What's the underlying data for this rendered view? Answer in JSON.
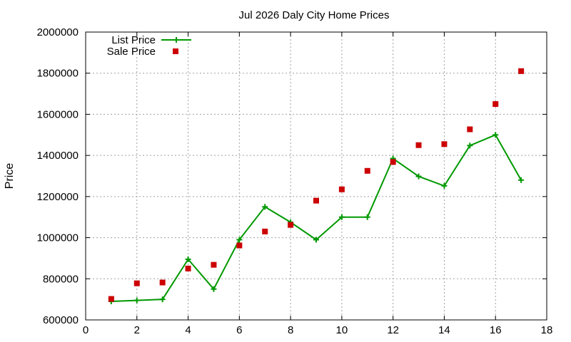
{
  "chart_data": {
    "type": "line",
    "title": "Jul 2026 Daly City Home Prices",
    "xlabel": "",
    "ylabel": "Price",
    "xlim": [
      0,
      18
    ],
    "ylim": [
      600000,
      2000000
    ],
    "x_ticks": [
      0,
      2,
      4,
      6,
      8,
      10,
      12,
      14,
      16,
      18
    ],
    "y_ticks": [
      600000,
      800000,
      1000000,
      1200000,
      1400000,
      1600000,
      1800000,
      2000000
    ],
    "grid": true,
    "legend_position": "top-left",
    "series": [
      {
        "name": "List Price",
        "style": "line+cross",
        "color": "#009900",
        "x": [
          1,
          2,
          3,
          4,
          5,
          6,
          7,
          8,
          9,
          10,
          11,
          12,
          13,
          14,
          15,
          16,
          17
        ],
        "y": [
          690000,
          695000,
          700000,
          895000,
          750000,
          990000,
          1150000,
          1075000,
          990000,
          1100000,
          1100000,
          1385000,
          1298000,
          1252000,
          1448000,
          1500000,
          1280000
        ]
      },
      {
        "name": "Sale Price",
        "style": "square",
        "color": "#cc0000",
        "x": [
          1,
          2,
          3,
          4,
          5,
          6,
          7,
          8,
          9,
          10,
          11,
          12,
          13,
          14,
          15,
          16,
          17
        ],
        "y": [
          702000,
          778000,
          782000,
          850000,
          868000,
          962000,
          1030000,
          1062000,
          1180000,
          1235000,
          1325000,
          1368000,
          1450000,
          1455000,
          1527000,
          1650000,
          1810000
        ]
      }
    ]
  }
}
